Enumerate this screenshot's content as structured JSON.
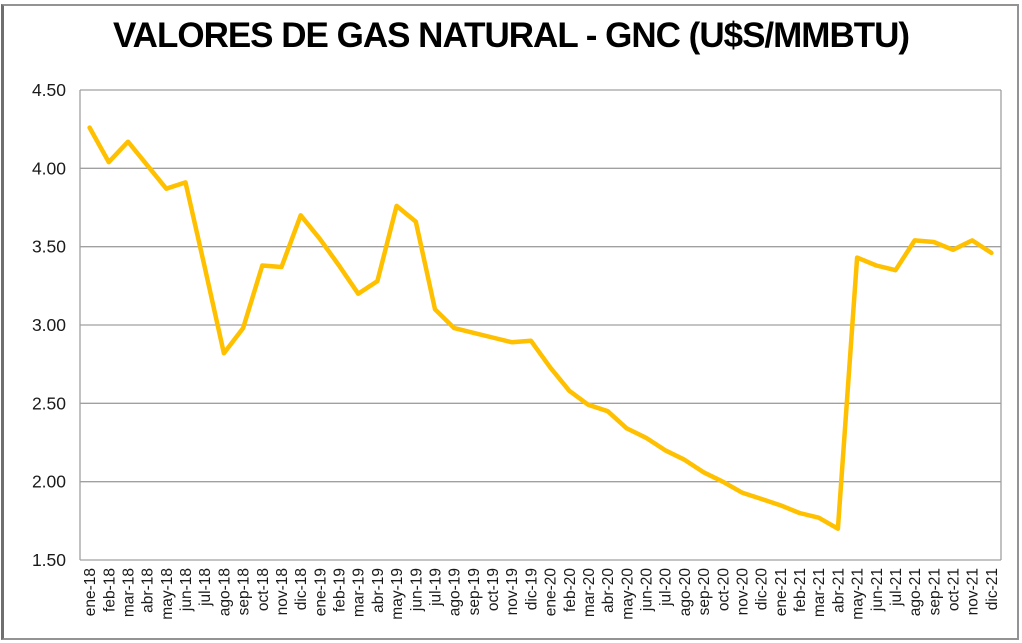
{
  "chart_data": {
    "type": "line",
    "title": "VALORES DE GAS NATURAL - GNC (U$S/MMBTU)",
    "categories": [
      "ene-18",
      "feb-18",
      "mar-18",
      "abr-18",
      "may-18",
      "jun-18",
      "jul-18",
      "ago-18",
      "sep-18",
      "oct-18",
      "nov-18",
      "dic-18",
      "ene-19",
      "feb-19",
      "mar-19",
      "abr-19",
      "may-19",
      "jun-19",
      "jul-19",
      "ago-19",
      "sep-19",
      "oct-19",
      "nov-19",
      "dic-19",
      "ene-20",
      "feb-20",
      "mar-20",
      "abr-20",
      "may-20",
      "jun-20",
      "jul-20",
      "ago-20",
      "sep-20",
      "oct-20",
      "nov-20",
      "dic-20",
      "ene-21",
      "feb-21",
      "mar-21",
      "abr-21",
      "may-21",
      "jun-21",
      "jul-21",
      "ago-21",
      "sep-21",
      "oct-21",
      "nov-21",
      "dic-21"
    ],
    "values": [
      4.26,
      4.04,
      4.17,
      4.02,
      3.87,
      3.91,
      3.37,
      2.82,
      2.98,
      3.38,
      3.37,
      3.7,
      3.55,
      3.38,
      3.2,
      3.28,
      3.76,
      3.66,
      3.1,
      2.98,
      2.95,
      2.92,
      2.89,
      2.9,
      2.73,
      2.58,
      2.49,
      2.45,
      2.34,
      2.28,
      2.2,
      2.14,
      2.06,
      2.0,
      1.93,
      1.89,
      1.85,
      1.8,
      1.77,
      1.7,
      3.43,
      3.38,
      3.35,
      3.54,
      3.53,
      3.48,
      3.54,
      3.46
    ],
    "xlabel": "",
    "ylabel": "",
    "ylim": [
      1.5,
      4.5
    ],
    "ytick_step": 0.5,
    "ytick_labels": [
      "4.50",
      "4.00",
      "3.50",
      "3.00",
      "2.50",
      "2.00",
      "1.50"
    ],
    "grid": true,
    "legend_position": "none",
    "line_color": "#FFC000",
    "gridline_color": "#A0A0A0",
    "axis_text_color": "#1a1a1a",
    "title_color": "#000000"
  }
}
